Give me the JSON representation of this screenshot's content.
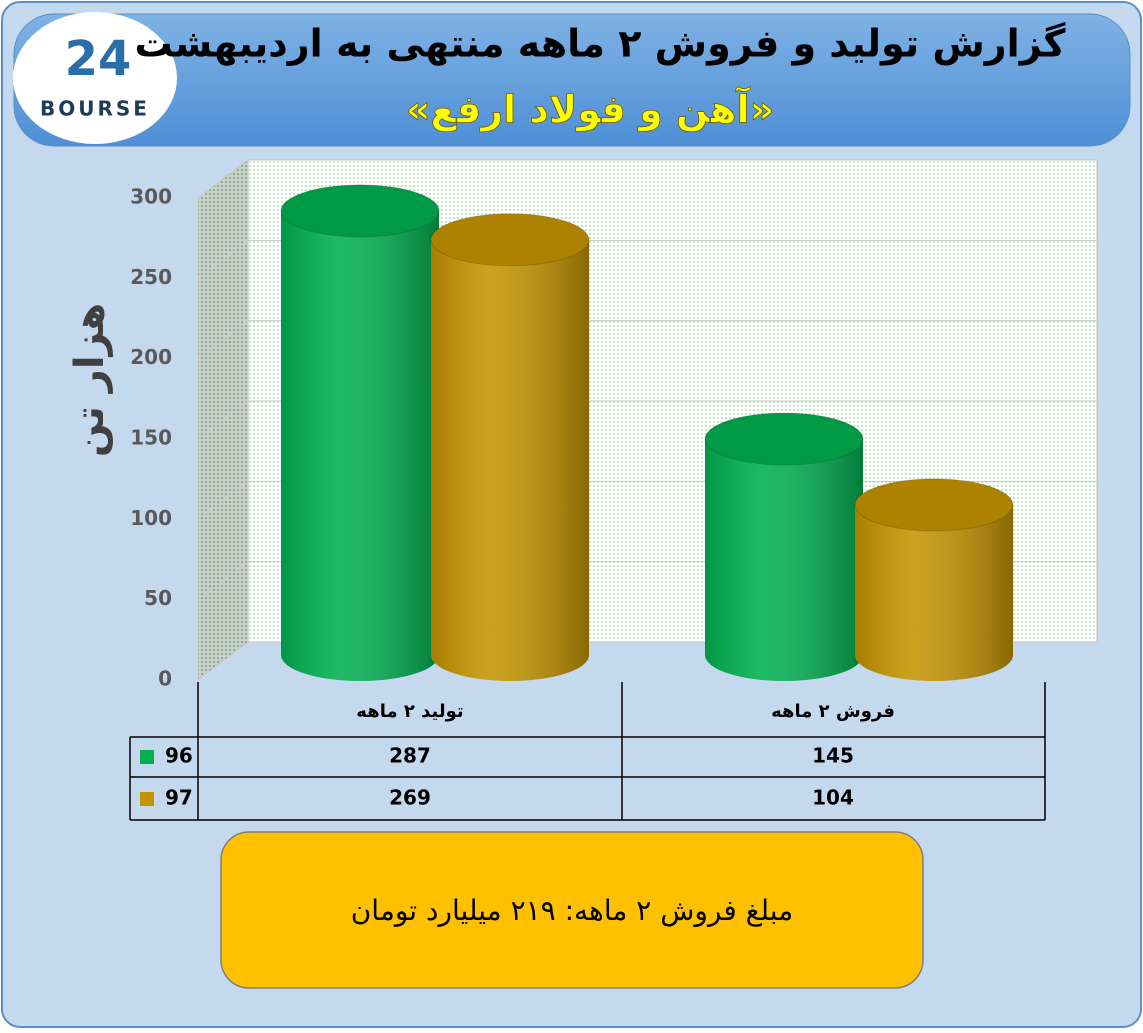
{
  "chart_data": {
    "type": "bar",
    "title": "گزارش تولید و فروش ۲ ماهه منتهی به اردیبهشت",
    "subtitle": "«آهن و فولاد ارفع»",
    "y_label": "هزار تن",
    "categories": [
      "تولید ۲ ماهه",
      "فروش ۲ ماهه"
    ],
    "series": [
      {
        "name": "96",
        "color": "#00b050",
        "values": [
          287,
          145
        ]
      },
      {
        "name": "97",
        "color": "#c49400",
        "values": [
          269,
          104
        ]
      }
    ],
    "ylim": [
      0,
      300
    ],
    "yticks": [
      0,
      50,
      100,
      150,
      200,
      250,
      300
    ],
    "grid": true,
    "note": "مبلغ فروش ۲ ماهه: ۲۱۹ میلیارد تومان"
  },
  "logo": {
    "number": "24",
    "name": "BOURSE"
  }
}
